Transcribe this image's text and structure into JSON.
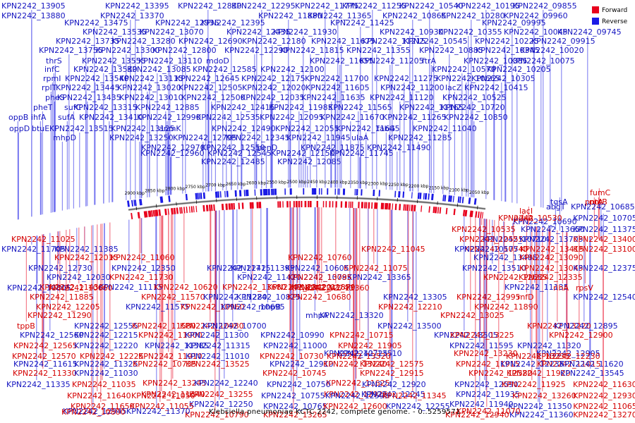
{
  "colors": {
    "forward": "#e8001c",
    "reverse": "#1a1ae6",
    "label_forward": "#d40000",
    "label_reverse": "#1515c0",
    "backbone": "#666666"
  },
  "legend": {
    "forward": "Forward",
    "reverse": "Reverse"
  },
  "caption": "Klebsiella pneumoniae KCTC 2242, complete genome. - 0..5259571",
  "axis_ticks": [
    "2050 kbp",
    "2100 kbp",
    "2150 kbp",
    "2200 kbp",
    "2250 kbp",
    "2300 kbp",
    "2350 kbp",
    "2400 kbp",
    "2450 kbp",
    "2500 kbp",
    "2550 kbp",
    "2600 kbp",
    "2650 kbp",
    "2700 kbp",
    "2750 kbp",
    "2800 kbp",
    "2850 kbp",
    "2900 kbp"
  ],
  "upper_labels": [
    "KPN2242_13905",
    "KPN2242_13395",
    "KPN2242_12830",
    "KPN2242_12295",
    "KPN2242_11775",
    "KPN2242_11255",
    "KPN2242_10540",
    "KPN2242_10195",
    "KPN2242_09855",
    "KPN2242_13880",
    "KPN2242_13370",
    "KPN2242_11880",
    "KPN2242_11365",
    "KPN2242_10865",
    "KPN2242_10280",
    "KPN2242_09960",
    "KPN2242_13475",
    "KPN2242_12935",
    "KPN2242_12395",
    "KPN2242_11425",
    "KPN2242_09995",
    "KPN2242_13535",
    "KPN2242_13070",
    "KPN2242_12435",
    "KPN2242_11930",
    "KPN2242_10930",
    "KPN2242_10355",
    "KPN2242_10045",
    "KPN2242_09745",
    "KPN2242_13735",
    "KPN2242_13280",
    "KPN2242_12690",
    "KPN2242_12180",
    "KPN2242_11675",
    "KPN2242_11215",
    "KPN2242_10545",
    "KPN2242_10225",
    "KPN2242_09915",
    "KPN2242_13755",
    "KPN2242_13300",
    "KPN2242_12800",
    "KPN2242_12290",
    "KPN2242_11815",
    "KPN2242_11355",
    "KPN2242_10885",
    "KPN2242_10345",
    "KPN2242_10020",
    "thrS",
    "KPN2242_13555",
    "KPN2242_13110",
    "mdoD",
    "KPN2242_11655",
    "KPN2242_11205",
    "ftrA",
    "KPN2242_10385",
    "KPN2242_10075",
    "infC",
    "KPN2242_13530",
    "KPN2242_13085",
    "KPN2242_12585",
    "KPN2242_12100",
    "KPN2242_10570",
    "KPN2242_10205",
    "rpmI",
    "KPN2242_13540",
    "KPN2242_13115",
    "KPN2242_12645",
    "KPN2242_12175",
    "KPN2242_11700",
    "KPN2242_11275",
    "KPN2242_10665",
    "KPN2242_10305",
    "rplT",
    "KPN2242_13445",
    "KPN2242_13020",
    "KPN2242_12505",
    "KPN2242_12020",
    "KPN2242_11605",
    "KPN2242_11200",
    "lacZ",
    "KPN2242_10415",
    "pheS",
    "KPN2242_13435",
    "KPN2242_13010",
    "KPN2242_12500",
    "KPN2242_12035",
    "KPN2242_11635",
    "KPN2242_11120",
    "KPN2242_10525",
    "pheT",
    "sufC",
    "KPN2242_13315",
    "KPN2242_12885",
    "KPN2242_12415",
    "KPN2242_11985",
    "KPN2242_11565",
    "KPN2242_11165",
    "KPN2242_10720",
    "oppB",
    "ihfA",
    "sufA",
    "KPN2242_13410",
    "KPN2242_12990",
    "KPN2242_12535",
    "KPN2242_12095",
    "KPN2242_11670",
    "KPN2242_11265",
    "KPN2242_10850",
    "oppD",
    "btuE",
    "KPN2242_13515",
    "KPN2242_13125",
    "anmK",
    "KPN2242_12490",
    "KPN2242_12055",
    "KPN2242_11645",
    "fabG",
    "KPN2242_11040",
    "mhpD",
    "KPN2242_13250",
    "KPN2242_12795",
    "KPN2242_12345",
    "KPN2242_11945",
    "ulaA",
    "KPN2242_11285",
    "KPN2242_12970",
    "KPN2242_12550",
    "benD",
    "KPN2242_11875",
    "KPN2242_11490",
    "KPN2242_12960",
    "KPN2242_12545",
    "KPN2242_12150",
    "KPN2242_11745",
    "KPN2242_12485",
    "KPN2242_12085"
  ],
  "lower_labels": [
    {
      "t": "fumC",
      "s": "f"
    },
    {
      "t": "pntA",
      "s": "f"
    },
    {
      "t": "tqsA",
      "s": "r"
    },
    {
      "t": "pntB",
      "s": "f"
    },
    {
      "t": "abgT",
      "s": "r"
    },
    {
      "t": "KPN2242_10685",
      "s": "r"
    },
    {
      "t": "lacI",
      "s": "f"
    },
    {
      "t": "KPN2242_10690",
      "s": "r"
    },
    {
      "t": "KPN2242_10530",
      "s": "f"
    },
    {
      "t": "pdxA",
      "s": "f"
    },
    {
      "t": "KPN2242_10705",
      "s": "r"
    },
    {
      "t": "KPN2242_10535",
      "s": "f"
    },
    {
      "t": "KPN2242_13650",
      "s": "r"
    },
    {
      "t": "KPN2242_11375",
      "s": "r"
    },
    {
      "t": "KPN2242_11025",
      "s": "f"
    },
    {
      "t": "KPN2242_10710",
      "s": "r"
    },
    {
      "t": "KPN2242_10555",
      "s": "f"
    },
    {
      "t": "KPN2242_13705",
      "s": "r"
    },
    {
      "t": "KPN2242_13400",
      "s": "f"
    },
    {
      "t": "KPN2242_11705",
      "s": "r"
    },
    {
      "t": "KPN2242_11385",
      "s": "r"
    },
    {
      "t": "KPN2242_11045",
      "s": "f"
    },
    {
      "t": "KPN2242_10740",
      "s": "f"
    },
    {
      "t": "KPN2242_10575",
      "s": "r"
    },
    {
      "t": "KPN2242_13415",
      "s": "f"
    },
    {
      "t": "KPN2242_13100",
      "s": "f"
    },
    {
      "t": "KPN2242_12015",
      "s": "f"
    },
    {
      "t": "KPN2242_11060",
      "s": "f"
    },
    {
      "t": "KPN2242_10760",
      "s": "f"
    },
    {
      "t": "KPN2242_13485",
      "s": "r"
    },
    {
      "t": "KPN2242_13090",
      "s": "f"
    },
    {
      "t": "KPN2242_12730",
      "s": "r"
    },
    {
      "t": "KPN2242_12350",
      "s": "r"
    },
    {
      "t": "KPN2242_11715",
      "s": "r"
    },
    {
      "t": "KPN2242_11395",
      "s": "r"
    },
    {
      "t": "KPN2242_11075",
      "s": "f"
    },
    {
      "t": "KPN2242_10605",
      "s": "r"
    },
    {
      "t": "KPN2242_13510",
      "s": "r"
    },
    {
      "t": "KPN2242_13045",
      "s": "f"
    },
    {
      "t": "KPN2242_12375",
      "s": "r"
    },
    {
      "t": "KPN2242_12030",
      "s": "r"
    },
    {
      "t": "KPN2242_11730",
      "s": "f"
    },
    {
      "t": "KPN2242_11420",
      "s": "r"
    },
    {
      "t": "KPN2242_10785",
      "s": "r"
    },
    {
      "t": "KPN2242_13365",
      "s": "r"
    },
    {
      "t": "KPN2242_13095",
      "s": "f"
    },
    {
      "t": "KPN2242_12685",
      "s": "f"
    },
    {
      "t": "KPN2242_12335",
      "s": "f"
    },
    {
      "t": "KPN2242_11430",
      "s": "f"
    },
    {
      "t": "KPN2242_11115",
      "s": "r"
    },
    {
      "t": "KPN2242_10620",
      "s": "f"
    },
    {
      "t": "KPN2242_13680",
      "s": "f"
    },
    {
      "t": "KPN2242_13420",
      "s": "f"
    },
    {
      "t": "KPN2242_11870",
      "s": "f"
    },
    {
      "t": "KPN2242_11135",
      "s": "r"
    },
    {
      "t": "KPN2242_10805",
      "s": "r"
    },
    {
      "t": "KPN2242_10660",
      "s": "f"
    },
    {
      "t": "KPN2242_13360",
      "s": "f"
    },
    {
      "t": "KPN2242_12740",
      "s": "f"
    },
    {
      "t": "rihA",
      "s": "f"
    },
    {
      "t": "rpsV",
      "s": "f"
    },
    {
      "t": "KPN2242_11885",
      "s": "f"
    },
    {
      "t": "KPN2242_11570",
      "s": "f"
    },
    {
      "t": "KPN2242_11280",
      "s": "r"
    },
    {
      "t": "KPN2242_10825",
      "s": "r"
    },
    {
      "t": "KPN2242_10680",
      "s": "f"
    },
    {
      "t": "KPN2242_13305",
      "s": "r"
    },
    {
      "t": "KPN2242_12995",
      "s": "f"
    },
    {
      "t": "rnfD",
      "s": "f"
    },
    {
      "t": "KPN2242_12540",
      "s": "r"
    },
    {
      "t": "KPN2242_12205",
      "s": "f"
    },
    {
      "t": "KPN2242_11575",
      "s": "r"
    },
    {
      "t": "KPN2242_10960",
      "s": "f"
    },
    {
      "t": "KPN2242_10695",
      "s": "r"
    },
    {
      "t": "mhpB",
      "s": "r"
    },
    {
      "t": "KPN2242_12210",
      "s": "f"
    },
    {
      "t": "KPN2242_11890",
      "s": "f"
    },
    {
      "t": "KPN2242_11290",
      "s": "f"
    },
    {
      "t": "mhpA",
      "s": "r"
    },
    {
      "t": "KPN2242_13320",
      "s": "r"
    },
    {
      "t": "KPN2242_13025",
      "s": "f"
    },
    {
      "t": "tppB",
      "s": "f"
    },
    {
      "t": "KPN2242_12555",
      "s": "r"
    },
    {
      "t": "KPN2242_11580",
      "s": "f"
    },
    {
      "t": "KPN2242_10980",
      "s": "f"
    },
    {
      "t": "KPN2242_10700",
      "s": "r"
    },
    {
      "t": "KPN2242_13500",
      "s": "r"
    },
    {
      "t": "KPN2242_13220",
      "s": "f"
    },
    {
      "t": "KPN2242_12895",
      "s": "r"
    },
    {
      "t": "KPN2242_12560",
      "s": "r"
    },
    {
      "t": "KPN2242_12215",
      "s": "r"
    },
    {
      "t": "KPN2242_11900",
      "s": "f"
    },
    {
      "t": "KPN2242_11300",
      "s": "r"
    },
    {
      "t": "KPN2242_10990",
      "s": "r"
    },
    {
      "t": "KPN2242_10715",
      "s": "f"
    },
    {
      "t": "KPN2242_13505",
      "s": "r"
    },
    {
      "t": "KPN2242_13225",
      "s": "f"
    },
    {
      "t": "KPN2242_12900",
      "s": "f"
    },
    {
      "t": "KPN2242_12565",
      "s": "f"
    },
    {
      "t": "KPN2242_12220",
      "s": "r"
    },
    {
      "t": "KPN2242_11585",
      "s": "r"
    },
    {
      "t": "KPN2242_11315",
      "s": "r"
    },
    {
      "t": "KPN2242_11000",
      "s": "r"
    },
    {
      "t": "KPN2242_11905",
      "s": "f"
    },
    {
      "t": "KPN2242_11595",
      "s": "r"
    },
    {
      "t": "KPN2242_11320",
      "s": "r"
    },
    {
      "t": "KPN2242_10725",
      "s": "r"
    },
    {
      "t": "KPN2242_13510",
      "s": "r"
    },
    {
      "t": "KPN2242_13230",
      "s": "f"
    },
    {
      "t": "KPN2242_12905",
      "s": "r"
    },
    {
      "t": "KPN2242_12570",
      "s": "f"
    },
    {
      "t": "KPN2242_12225",
      "s": "f"
    },
    {
      "t": "KPN2242_11910",
      "s": "f"
    },
    {
      "t": "KPN2242_11010",
      "s": "r"
    },
    {
      "t": "KPN2242_10730",
      "s": "f"
    },
    {
      "t": "KPN2242_13520",
      "s": "f"
    },
    {
      "t": "KPN2242_13235",
      "s": "f"
    },
    {
      "t": "KPN2242_12230",
      "s": "f"
    },
    {
      "t": "KPN2242_11615",
      "s": "r"
    },
    {
      "t": "KPN2242_11325",
      "s": "r"
    },
    {
      "t": "KPN2242_12910",
      "s": "r"
    },
    {
      "t": "KPN2242_12575",
      "s": "f"
    },
    {
      "t": "KPN2242_11915",
      "s": "f"
    },
    {
      "t": "KPN2242_11015",
      "s": "f"
    },
    {
      "t": "KPN2242_10735",
      "s": "f"
    },
    {
      "t": "KPN2242_13525",
      "s": "f"
    },
    {
      "t": "KPN2242_13240",
      "s": "f"
    },
    {
      "t": "KPN2242_12235",
      "s": "r"
    },
    {
      "t": "KPN2242_11620",
      "s": "r"
    },
    {
      "t": "KPN2242_11330",
      "s": "f"
    },
    {
      "t": "KPN2242_11030",
      "s": "r"
    },
    {
      "t": "KPN2242_10745",
      "s": "f"
    },
    {
      "t": "KPN2242_12915",
      "s": "f"
    },
    {
      "t": "KPN2242_12580",
      "s": "f"
    },
    {
      "t": "KPN2242_11920",
      "s": "f"
    },
    {
      "t": "KPN2242_13545",
      "s": "r"
    },
    {
      "t": "KPN2242_13245",
      "s": "f"
    },
    {
      "t": "KPN2242_12240",
      "s": "r"
    },
    {
      "t": "KPN2242_11625",
      "s": "f"
    },
    {
      "t": "KPN2242_11335",
      "s": "r"
    },
    {
      "t": "KPN2242_11035",
      "s": "f"
    },
    {
      "t": "KPN2242_10750",
      "s": "r"
    },
    {
      "t": "KPN2242_12920",
      "s": "r"
    },
    {
      "t": "KPN2242_12590",
      "s": "r"
    },
    {
      "t": "KPN2242_11925",
      "s": "f"
    },
    {
      "t": "KPN2242_11630",
      "s": "f"
    },
    {
      "t": "KPN2242_11340",
      "s": "f"
    },
    {
      "t": "KPN2242_13255",
      "s": "f"
    },
    {
      "t": "KPN2242_12925",
      "s": "f"
    },
    {
      "t": "KPN2242_12245",
      "s": "r"
    },
    {
      "t": "KPN2242_11935",
      "s": "r"
    },
    {
      "t": "KPN2242_11640",
      "s": "f"
    },
    {
      "t": "KPN2242_11050",
      "s": "f"
    },
    {
      "t": "KPN2242_10755",
      "s": "r"
    },
    {
      "t": "KPN2242_12595",
      "s": "r"
    },
    {
      "t": "KPN2242_11345",
      "s": "f"
    },
    {
      "t": "KPN2242_13260",
      "s": "f"
    },
    {
      "t": "KPN2242_12930",
      "s": "f"
    },
    {
      "t": "KPN2242_12250",
      "s": "r"
    },
    {
      "t": "KPN2242_11940",
      "s": "r"
    },
    {
      "t": "KPN2242_11650",
      "s": "f"
    },
    {
      "t": "KPN2242_11055",
      "s": "f"
    },
    {
      "t": "KPN2242_10765",
      "s": "r"
    },
    {
      "t": "KPN2242_12600",
      "s": "f"
    },
    {
      "t": "KPN2242_12255",
      "s": "r"
    },
    {
      "t": "KPN2242_11350",
      "s": "r"
    },
    {
      "t": "KPN2242_11065",
      "s": "f"
    },
    {
      "t": "KPN2242_10790",
      "s": "f"
    },
    {
      "t": "KPN2242_13265",
      "s": "f"
    },
    {
      "t": "KPN2242_12940",
      "s": "f"
    },
    {
      "t": "KPN2242_11360",
      "s": "r"
    },
    {
      "t": "KPN2242_13270",
      "s": "f"
    },
    {
      "t": "KPN2242_12945",
      "s": "r"
    },
    {
      "t": "KPN2242_11370",
      "s": "r"
    },
    {
      "t": "KPN2242_11070",
      "s": "f"
    },
    {
      "t": "KPN2242_10800",
      "s": "f"
    }
  ]
}
